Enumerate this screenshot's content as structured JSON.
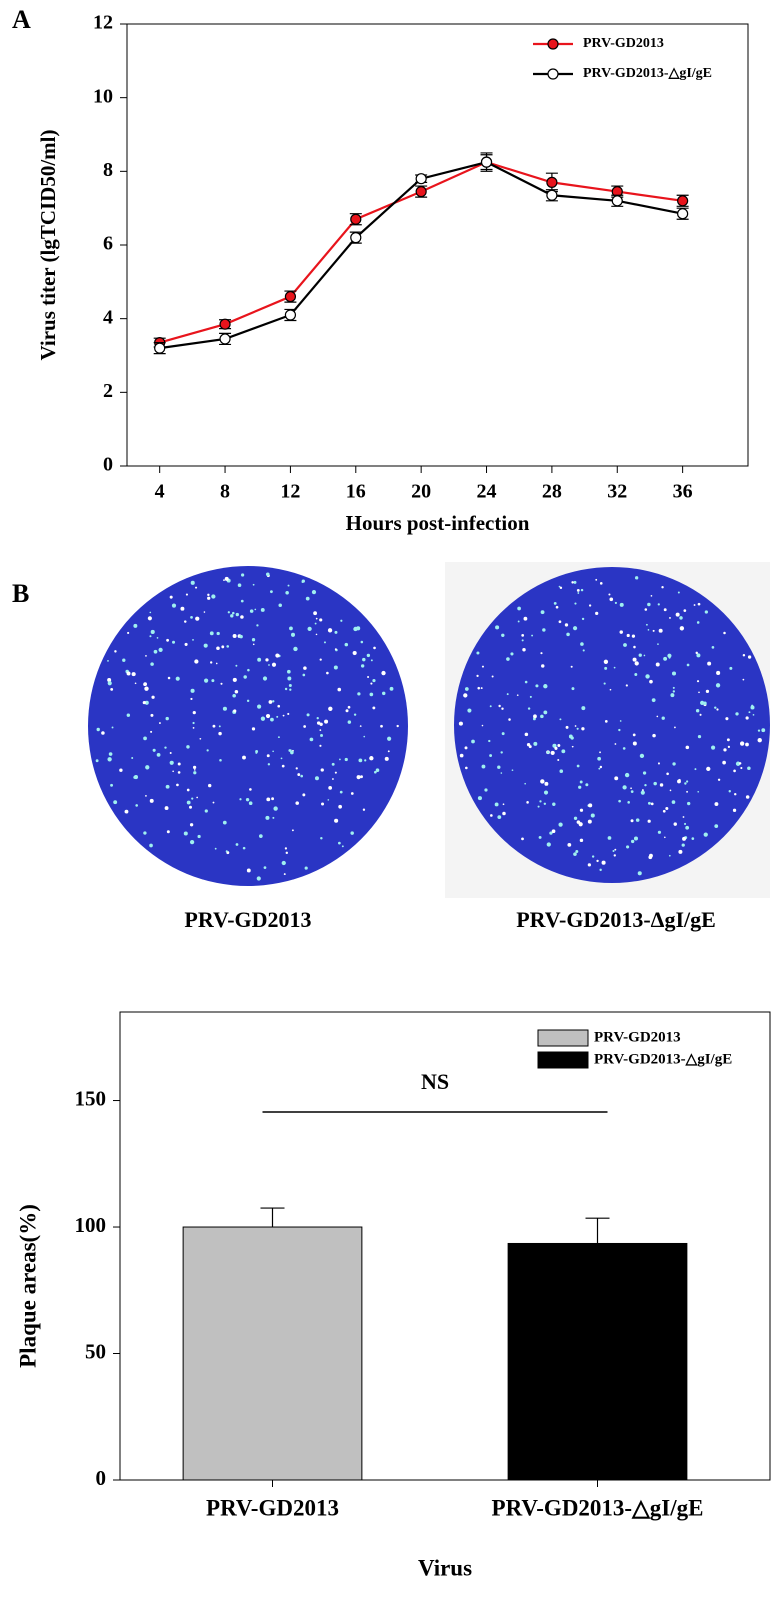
{
  "panel_labels": [
    "A",
    "B"
  ],
  "plaque_captions": [
    "PRV-GD2013",
    "PRV-GD2013-ΔgI/gE"
  ],
  "chart_data": [
    {
      "type": "line",
      "xlabel": "Hours post-infection",
      "ylabel": "Virus titer (lgTCID50/ml)",
      "x": [
        4,
        8,
        12,
        16,
        20,
        24,
        28,
        32,
        36
      ],
      "xlim": [
        2,
        40
      ],
      "xticks": [
        4,
        8,
        12,
        16,
        20,
        24,
        28,
        32,
        36
      ],
      "ylim": [
        0,
        12
      ],
      "yticks": [
        0,
        2,
        4,
        6,
        8,
        10,
        12
      ],
      "legend": "upper right",
      "series": [
        {
          "name": "PRV-GD2013",
          "color": "#e8141c",
          "marker_fill": "#e8141c",
          "values": [
            3.35,
            3.85,
            4.6,
            6.7,
            7.45,
            8.25,
            7.7,
            7.45,
            7.2
          ],
          "errors": [
            0.12,
            0.12,
            0.15,
            0.15,
            0.15,
            0.2,
            0.25,
            0.15,
            0.15
          ]
        },
        {
          "name": "PRV-GD2013-△gI/gE",
          "color": "#000000",
          "marker_fill": "#ffffff",
          "values": [
            3.2,
            3.45,
            4.1,
            6.2,
            7.8,
            8.25,
            7.35,
            7.2,
            6.85
          ],
          "errors": [
            0.15,
            0.15,
            0.15,
            0.15,
            0.1,
            0.25,
            0.15,
            0.15,
            0.15
          ]
        }
      ]
    },
    {
      "type": "bar",
      "xlabel": "Virus",
      "ylabel": "Plaque areas(%)",
      "annotation": "NS",
      "categories": [
        "PRV-GD2013",
        "PRV-GD2013-△gI/gE"
      ],
      "values": [
        100,
        93.5
      ],
      "errors": [
        7.5,
        10
      ],
      "colors": [
        "#c0c0c0",
        "#000000"
      ],
      "ylim": [
        0,
        185
      ],
      "yticks": [
        0,
        50,
        100,
        150
      ],
      "legend": "upper right"
    }
  ]
}
